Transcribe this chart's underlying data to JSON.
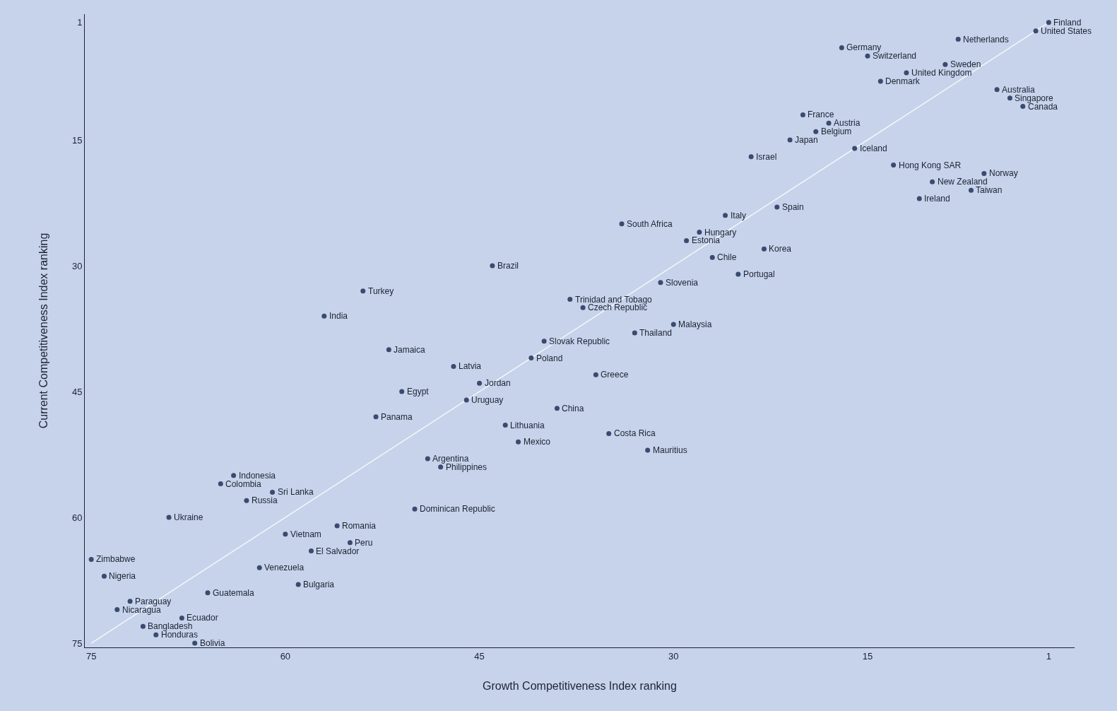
{
  "chart_data": {
    "type": "scatter",
    "xlabel": "Growth Competitiveness Index ranking",
    "ylabel": "Current Competitiveness Index ranking",
    "xlim": [
      75.5,
      -1
    ],
    "ylim": [
      75.5,
      0
    ],
    "xticks": [
      75,
      60,
      45,
      30,
      15,
      1
    ],
    "yticks": [
      1,
      15,
      30,
      45,
      60,
      75
    ],
    "series": [
      {
        "type": "line",
        "color": "#f4f7fc",
        "x": [
          75,
          1
        ],
        "values": [
          75,
          1
        ]
      },
      {
        "marker": "circle",
        "color": "#3a4a70",
        "x": [
          1,
          2,
          8,
          17,
          15,
          9,
          12,
          14,
          5,
          4,
          3,
          20,
          18,
          19,
          21,
          16,
          24,
          13,
          6,
          10,
          7,
          11,
          22,
          26,
          34,
          28,
          29,
          23,
          27,
          44,
          25,
          31,
          54,
          38,
          37,
          57,
          30,
          33,
          40,
          52,
          41,
          47,
          36,
          45,
          51,
          46,
          39,
          53,
          43,
          35,
          42,
          32,
          49,
          48,
          64,
          65,
          61,
          63,
          50,
          69,
          56,
          60,
          55,
          58,
          75,
          62,
          74,
          59,
          66,
          72,
          73,
          68,
          71,
          70,
          67
        ],
        "values": [
          1,
          2,
          3,
          4,
          5,
          6,
          7,
          8,
          9,
          10,
          11,
          12,
          13,
          14,
          15,
          16,
          17,
          18,
          19,
          20,
          21,
          22,
          23,
          24,
          25,
          26,
          27,
          28,
          29,
          30,
          31,
          32,
          33,
          34,
          35,
          36,
          37,
          38,
          39,
          40,
          41,
          42,
          43,
          44,
          45,
          46,
          47,
          48,
          49,
          50,
          51,
          52,
          53,
          54,
          55,
          56,
          57,
          58,
          59,
          60,
          61,
          62,
          63,
          64,
          65,
          66,
          67,
          68,
          69,
          70,
          71,
          72,
          73,
          74,
          75
        ]
      }
    ],
    "annotations": [
      {
        "text": "Finland",
        "x": 1,
        "y": 1
      },
      {
        "text": "United States",
        "x": 2,
        "y": 2
      },
      {
        "text": "Netherlands",
        "x": 8,
        "y": 3
      },
      {
        "text": "Germany",
        "x": 17,
        "y": 4
      },
      {
        "text": "Switzerland",
        "x": 15,
        "y": 5
      },
      {
        "text": "Sweden",
        "x": 9,
        "y": 6
      },
      {
        "text": "United Kingdom",
        "x": 12,
        "y": 7
      },
      {
        "text": "Denmark",
        "x": 14,
        "y": 8
      },
      {
        "text": "Australia",
        "x": 5,
        "y": 9
      },
      {
        "text": "Singapore",
        "x": 4,
        "y": 10
      },
      {
        "text": "Canada",
        "x": 3,
        "y": 11
      },
      {
        "text": "France",
        "x": 20,
        "y": 12
      },
      {
        "text": "Austria",
        "x": 18,
        "y": 13
      },
      {
        "text": "Belgium",
        "x": 19,
        "y": 14
      },
      {
        "text": "Japan",
        "x": 21,
        "y": 15
      },
      {
        "text": "Iceland",
        "x": 16,
        "y": 16
      },
      {
        "text": "Israel",
        "x": 24,
        "y": 17
      },
      {
        "text": "Hong Kong SAR",
        "x": 13,
        "y": 18
      },
      {
        "text": "Norway",
        "x": 6,
        "y": 19
      },
      {
        "text": "New Zealand",
        "x": 10,
        "y": 20
      },
      {
        "text": "Taiwan",
        "x": 7,
        "y": 21
      },
      {
        "text": "Ireland",
        "x": 11,
        "y": 22
      },
      {
        "text": "Spain",
        "x": 22,
        "y": 23
      },
      {
        "text": "Italy",
        "x": 26,
        "y": 24
      },
      {
        "text": "South Africa",
        "x": 34,
        "y": 25
      },
      {
        "text": "Hungary",
        "x": 28,
        "y": 26
      },
      {
        "text": "Estonia",
        "x": 29,
        "y": 27
      },
      {
        "text": "Korea",
        "x": 23,
        "y": 28
      },
      {
        "text": "Chile",
        "x": 27,
        "y": 29
      },
      {
        "text": "Brazil",
        "x": 44,
        "y": 30
      },
      {
        "text": "Portugal",
        "x": 25,
        "y": 31
      },
      {
        "text": "Slovenia",
        "x": 31,
        "y": 32
      },
      {
        "text": "Turkey",
        "x": 54,
        "y": 33
      },
      {
        "text": "Trinidad and Tobago",
        "x": 38,
        "y": 34
      },
      {
        "text": "Czech Republic",
        "x": 37,
        "y": 35
      },
      {
        "text": "India",
        "x": 57,
        "y": 36
      },
      {
        "text": "Malaysia",
        "x": 30,
        "y": 37
      },
      {
        "text": "Thailand",
        "x": 33,
        "y": 38
      },
      {
        "text": "Slovak Republic",
        "x": 40,
        "y": 39
      },
      {
        "text": "Jamaica",
        "x": 52,
        "y": 40
      },
      {
        "text": "Poland",
        "x": 41,
        "y": 41
      },
      {
        "text": "Latvia",
        "x": 47,
        "y": 42
      },
      {
        "text": "Greece",
        "x": 36,
        "y": 43
      },
      {
        "text": "Jordan",
        "x": 45,
        "y": 44
      },
      {
        "text": "Egypt",
        "x": 51,
        "y": 45
      },
      {
        "text": "Uruguay",
        "x": 46,
        "y": 46
      },
      {
        "text": "China",
        "x": 39,
        "y": 47
      },
      {
        "text": "Panama",
        "x": 53,
        "y": 48
      },
      {
        "text": "Lithuania",
        "x": 43,
        "y": 49
      },
      {
        "text": "Costa Rica",
        "x": 35,
        "y": 50
      },
      {
        "text": "Mexico",
        "x": 42,
        "y": 51
      },
      {
        "text": "Mauritius",
        "x": 32,
        "y": 52
      },
      {
        "text": "Argentina",
        "x": 49,
        "y": 53
      },
      {
        "text": "Philippines",
        "x": 48,
        "y": 54
      },
      {
        "text": "Indonesia",
        "x": 64,
        "y": 55
      },
      {
        "text": "Colombia",
        "x": 65,
        "y": 56
      },
      {
        "text": "Sri Lanka",
        "x": 61,
        "y": 57
      },
      {
        "text": "Russia",
        "x": 63,
        "y": 58
      },
      {
        "text": "Dominican Republic",
        "x": 50,
        "y": 59
      },
      {
        "text": "Ukraine",
        "x": 69,
        "y": 60
      },
      {
        "text": "Romania",
        "x": 56,
        "y": 61
      },
      {
        "text": "Vietnam",
        "x": 60,
        "y": 62
      },
      {
        "text": "Peru",
        "x": 55,
        "y": 63
      },
      {
        "text": "El Salvador",
        "x": 58,
        "y": 64
      },
      {
        "text": "Zimbabwe",
        "x": 75,
        "y": 65
      },
      {
        "text": "Venezuela",
        "x": 62,
        "y": 66
      },
      {
        "text": "Nigeria",
        "x": 74,
        "y": 67
      },
      {
        "text": "Bulgaria",
        "x": 59,
        "y": 68
      },
      {
        "text": "Guatemala",
        "x": 66,
        "y": 69
      },
      {
        "text": "Paraguay",
        "x": 72,
        "y": 70
      },
      {
        "text": "Nicaragua",
        "x": 73,
        "y": 71
      },
      {
        "text": "Ecuador",
        "x": 68,
        "y": 72
      },
      {
        "text": "Bangladesh",
        "x": 71,
        "y": 73
      },
      {
        "text": "Honduras",
        "x": 70,
        "y": 74
      },
      {
        "text": "Bolivia",
        "x": 67,
        "y": 75
      }
    ]
  }
}
